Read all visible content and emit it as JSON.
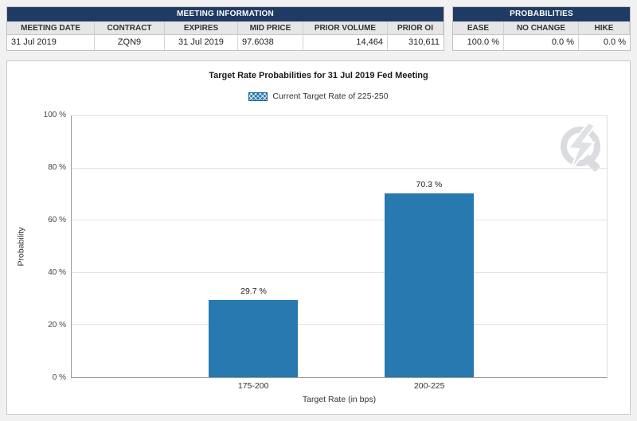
{
  "meeting_info": {
    "title": "MEETING INFORMATION",
    "columns": [
      "MEETING DATE",
      "CONTRACT",
      "EXPIRES",
      "MID PRICE",
      "PRIOR VOLUME",
      "PRIOR OI"
    ],
    "values": [
      "31 Jul 2019",
      "ZQN9",
      "31 Jul 2019",
      "97.6038",
      "14,464",
      "310,611"
    ]
  },
  "probabilities": {
    "title": "PROBABILITIES",
    "columns": [
      "EASE",
      "NO CHANGE",
      "HIKE"
    ],
    "values": [
      "100.0 %",
      "0.0 %",
      "0.0 %"
    ]
  },
  "chart": {
    "title": "Target Rate Probabilities for 31 Jul 2019 Fed Meeting",
    "legend_label": "Current Target Rate of 225-250",
    "ylabel": "Probability",
    "xlabel": "Target Rate (in bps)",
    "yticks": [
      "0 %",
      "20 %",
      "40 %",
      "60 %",
      "80 %",
      "100 %"
    ]
  },
  "chart_data": {
    "type": "bar",
    "categories": [
      "175-200",
      "200-225"
    ],
    "values": [
      29.7,
      70.3
    ],
    "value_labels": [
      "29.7 %",
      "70.3 %"
    ],
    "title": "Target Rate Probabilities for 31 Jul 2019 Fed Meeting",
    "xlabel": "Target Rate (in bps)",
    "ylabel": "Probability",
    "ylim": [
      0,
      100
    ],
    "ytick_step": 20,
    "grid": "horizontal",
    "legend_entries": [
      "Current Target Rate of 225-250"
    ],
    "legend_position": "top-center",
    "bar_color": "#2779b0"
  },
  "icons": {
    "watermark": "quikstrike-logo"
  },
  "colors": {
    "header_navy": "#1f3a63",
    "bar_blue": "#2779b0",
    "header_gray": "#e6e6e6"
  }
}
